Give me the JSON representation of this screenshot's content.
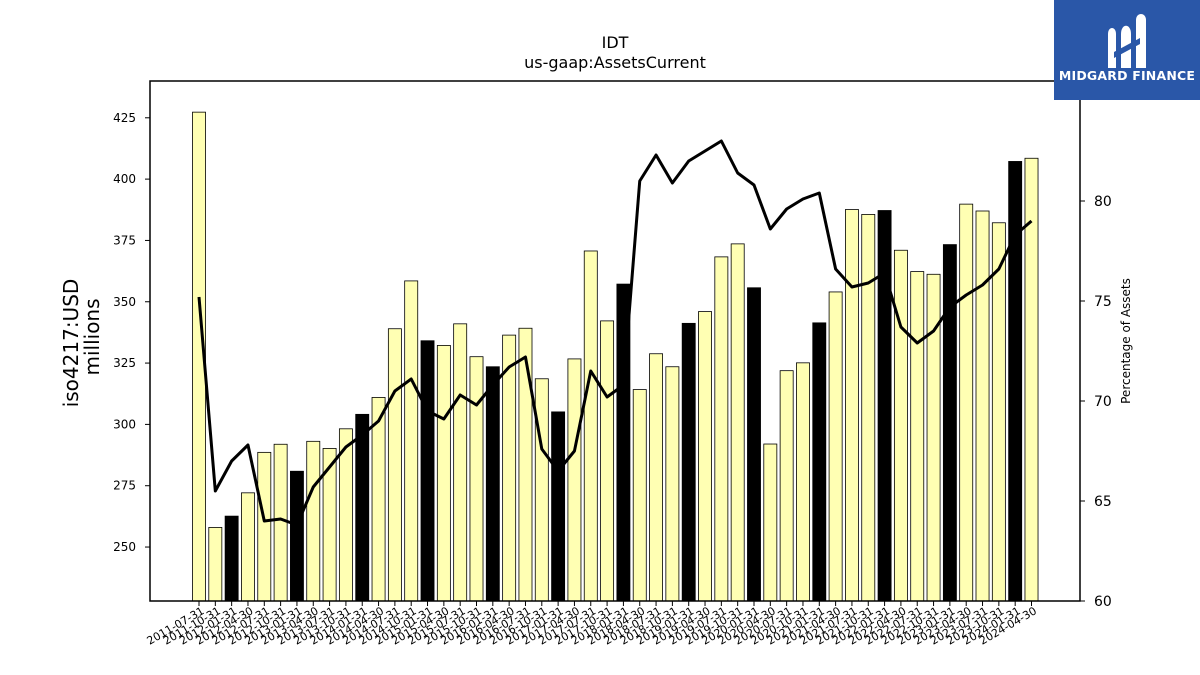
{
  "brand": {
    "name": "MIDGARD FINANCE",
    "color": "#2a57a8"
  },
  "chart_data": {
    "type": "bar",
    "title": "IDT",
    "subtitle": "us-gaap:AssetsCurrent",
    "ylabel": "iso4217:USD",
    "ylabel_unit": "millions",
    "y2label": "Percentage of Assets",
    "ylim": [
      228,
      440
    ],
    "y2lim": [
      60,
      86
    ],
    "yticks": [
      250,
      275,
      300,
      325,
      350,
      375,
      400,
      425
    ],
    "y2ticks": [
      60,
      65,
      70,
      75,
      80
    ],
    "grid": false,
    "colors": {
      "bar_regular": "#ffffb3",
      "bar_highlight": "#000000",
      "line": "#000000"
    },
    "categories": [
      "2011-07-31",
      "2011-10-31",
      "2012-01-31",
      "2012-04-30",
      "2012-07-31",
      "2012-10-31",
      "2013-01-31",
      "2013-04-30",
      "2013-07-31",
      "2013-10-31",
      "2014-01-31",
      "2014-04-30",
      "2014-07-31",
      "2014-10-31",
      "2015-01-31",
      "2015-04-30",
      "2015-07-31",
      "2015-10-31",
      "2016-01-31",
      "2016-04-30",
      "2016-07-31",
      "2016-10-31",
      "2017-01-31",
      "2017-04-30",
      "2017-07-31",
      "2017-10-31",
      "2018-01-31",
      "2018-04-30",
      "2018-07-31",
      "2018-10-31",
      "2019-01-31",
      "2019-04-30",
      "2019-07-31",
      "2019-10-31",
      "2020-01-31",
      "2020-04-30",
      "2020-07-31",
      "2020-10-31",
      "2021-01-31",
      "2021-04-30",
      "2021-07-31",
      "2021-10-31",
      "2022-01-31",
      "2022-04-30",
      "2022-07-31",
      "2022-10-31",
      "2023-01-31",
      "2023-04-30",
      "2023-07-31",
      "2023-10-31",
      "2024-01-31",
      "2024-04-30"
    ],
    "tick_labels_shown": [
      "2011-07-31",
      "2011-10-31",
      "2012-01-31",
      "2012-04-30",
      "2012-07-31",
      "2012-10-31",
      "2013-01-31",
      "2013-04-30",
      "2013-07-31",
      "2013-10-31",
      "2014-01-31",
      "2014-04-30",
      "2014-07-31",
      "2014-10-31",
      "2015-01-31",
      "2015-04-30",
      "2015-07-31",
      "2015-10-31",
      "2016-01-31",
      "2016-04-30",
      "2016-07-31",
      "2016-10-31",
      "2017-01-31",
      "2017-04-30",
      "2017-07-31",
      "2017-10-31",
      "2018-01-31",
      "2018-04-30",
      "2018-07-31",
      "2018-10-31",
      "2019-01-31",
      "2019-04-30",
      "2019-07-31",
      "2019-10-31",
      "2020-01-31",
      "2020-04-30",
      "2020-07-31",
      "2020-10-31",
      "2021-01-31",
      "2021-04-30",
      "2021-07-31",
      "2021-10-31",
      "2022-01-31",
      "2022-04-30",
      "2022-07-31",
      "2022-10-31",
      "2023-01-31",
      "2023-04-30",
      "2023-07-31",
      "2023-10-31",
      "2024-01-31",
      "2024-04-30"
    ],
    "values": [
      427.3,
      258.0,
      262.6,
      272.1,
      288.6,
      291.9,
      280.9,
      293.1,
      290.2,
      298.2,
      304.1,
      311.0,
      339.0,
      358.5,
      334.1,
      332.2,
      341.0,
      327.6,
      323.5,
      336.4,
      339.2,
      318.6,
      305.1,
      326.7,
      370.7,
      342.2,
      357.2,
      314.2,
      328.8,
      323.5,
      341.2,
      346.0,
      368.3,
      373.6,
      355.7,
      292.0,
      321.9,
      325.1,
      341.4,
      354.0,
      387.6,
      385.6,
      387.2,
      371.0,
      362.3,
      361.2,
      373.3,
      389.8,
      387.0,
      382.2,
      407.2,
      408.5
    ],
    "highlight": [
      false,
      false,
      true,
      false,
      false,
      false,
      true,
      false,
      false,
      false,
      true,
      false,
      false,
      false,
      true,
      false,
      false,
      false,
      true,
      false,
      false,
      false,
      true,
      false,
      false,
      false,
      true,
      false,
      false,
      false,
      true,
      false,
      false,
      false,
      true,
      false,
      false,
      false,
      true,
      false,
      false,
      false,
      true,
      false,
      false,
      false,
      true,
      false,
      false,
      false,
      true,
      false
    ],
    "series": [
      {
        "axis": "right",
        "values": [
          75.2,
          65.5,
          67.0,
          67.8,
          64.0,
          64.1,
          63.8,
          65.7,
          66.7,
          67.7,
          68.3,
          69.0,
          70.5,
          71.1,
          69.5,
          69.1,
          70.3,
          69.8,
          70.8,
          71.7,
          72.2,
          67.6,
          66.5,
          67.5,
          71.5,
          70.2,
          70.8,
          81.0,
          82.3,
          80.9,
          82.0,
          82.5,
          83.0,
          81.4,
          80.8,
          78.6,
          79.6,
          80.1,
          80.4,
          76.6,
          75.7,
          75.9,
          76.4,
          73.7,
          72.9,
          73.5,
          74.7,
          75.3,
          75.8,
          76.6,
          78.3,
          79.0
        ]
      }
    ]
  }
}
